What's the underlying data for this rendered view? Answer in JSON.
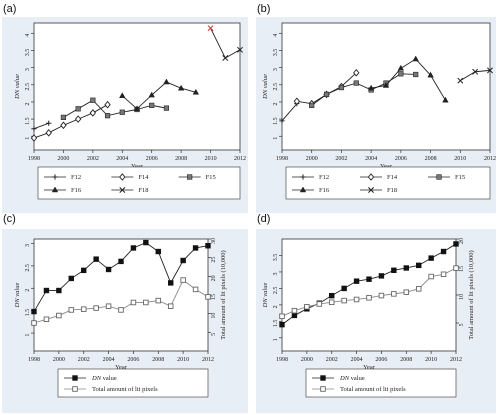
{
  "panels": [
    {
      "label": "(a)"
    },
    {
      "label": "(b)"
    },
    {
      "label": "(c)"
    },
    {
      "label": "(d)"
    }
  ],
  "colors": {
    "line": "#222222",
    "background": "#e8eef5",
    "plot": "#ffffff",
    "red": "#d32f2f",
    "gray": "#999999"
  },
  "chart_data": [
    {
      "type": "line",
      "panel": "(a)",
      "xlabel": "Year",
      "ylabel": "DN value",
      "xlim": [
        1998,
        2012
      ],
      "ylim": [
        0.6,
        4.3
      ],
      "xticks": [
        1998,
        2000,
        2002,
        2004,
        2006,
        2008,
        2010,
        2012
      ],
      "yticks": [
        1,
        1.5,
        2,
        2.5,
        3,
        3.5,
        4
      ],
      "legend": "bottom",
      "series": [
        {
          "name": "F12",
          "marker": "plus",
          "x": [
            1998,
            1999
          ],
          "values": [
            1.22,
            1.38
          ]
        },
        {
          "name": "F14",
          "marker": "diamond",
          "x": [
            1998,
            1999,
            2000,
            2001,
            2002,
            2003
          ],
          "values": [
            0.95,
            1.1,
            1.32,
            1.5,
            1.68,
            1.92
          ]
        },
        {
          "name": "F15",
          "marker": "square",
          "x": [
            2000,
            2001,
            2002,
            2003,
            2004,
            2005,
            2006,
            2007
          ],
          "values": [
            1.55,
            1.8,
            2.05,
            1.6,
            1.7,
            1.78,
            1.9,
            1.82
          ]
        },
        {
          "name": "F16",
          "marker": "triangle",
          "x": [
            2004,
            2005,
            2006,
            2007,
            2008,
            2009
          ],
          "values": [
            2.18,
            1.8,
            2.2,
            2.58,
            2.4,
            2.28
          ]
        },
        {
          "name": "F18",
          "marker": "x",
          "x": [
            2010,
            2011,
            2012
          ],
          "values": [
            4.15,
            3.28,
            3.52
          ],
          "red_x": [
            2010
          ]
        }
      ]
    },
    {
      "type": "line",
      "panel": "(b)",
      "xlabel": "Year",
      "ylabel": "DN value",
      "xlim": [
        1998,
        2012
      ],
      "ylim": [
        0.6,
        4.3
      ],
      "xticks": [
        1998,
        2000,
        2002,
        2004,
        2006,
        2008,
        2010,
        2012
      ],
      "yticks": [
        1,
        1.5,
        2,
        2.5,
        3,
        3.5,
        4
      ],
      "legend": "bottom",
      "series": [
        {
          "name": "F12",
          "marker": "plus",
          "x": [
            1998,
            1999
          ],
          "values": [
            1.45,
            1.95
          ]
        },
        {
          "name": "F14",
          "marker": "diamond",
          "x": [
            1999,
            2000,
            2001,
            2002,
            2003
          ],
          "values": [
            2.02,
            1.95,
            2.22,
            2.45,
            2.85
          ]
        },
        {
          "name": "F15",
          "marker": "square",
          "x": [
            2000,
            2001,
            2002,
            2003,
            2004,
            2005,
            2006,
            2007
          ],
          "values": [
            1.9,
            2.22,
            2.42,
            2.55,
            2.35,
            2.55,
            2.82,
            2.8
          ]
        },
        {
          "name": "F16",
          "marker": "triangle",
          "x": [
            2004,
            2005,
            2006,
            2007,
            2008,
            2009
          ],
          "values": [
            2.4,
            2.48,
            2.98,
            3.25,
            2.78,
            2.05
          ]
        },
        {
          "name": "F18",
          "marker": "x",
          "x": [
            2010,
            2011,
            2012
          ],
          "values": [
            2.62,
            2.88,
            2.92
          ]
        }
      ]
    },
    {
      "type": "line",
      "panel": "(c)",
      "xlabel": "Year",
      "ylabel": "DN value",
      "y2label": "Total amount of lit pixels (10,000)",
      "xlim": [
        1998,
        2012
      ],
      "ylim": [
        0.6,
        3.1
      ],
      "y2lim": [
        0,
        30
      ],
      "xticks": [
        1998,
        2000,
        2002,
        2004,
        2006,
        2008,
        2010,
        2012
      ],
      "yticks": [
        1,
        1.5,
        2,
        2.5,
        3
      ],
      "y2ticks": [
        5,
        10,
        15,
        20,
        25,
        30
      ],
      "legend": "bottom-left",
      "series": [
        {
          "name": "DN value",
          "axis": "left",
          "marker": "filled-square",
          "x": [
            1998,
            1999,
            2000,
            2001,
            2002,
            2003,
            2004,
            2005,
            2006,
            2007,
            2008,
            2009,
            2010,
            2011,
            2012
          ],
          "values": [
            1.48,
            1.95,
            1.95,
            2.22,
            2.4,
            2.65,
            2.42,
            2.6,
            2.9,
            3.02,
            2.82,
            2.12,
            2.62,
            2.9,
            2.95
          ]
        },
        {
          "name": "Total amount of lit pixels",
          "axis": "right",
          "marker": "open-square",
          "x": [
            1998,
            1999,
            2000,
            2001,
            2002,
            2003,
            2004,
            2005,
            2006,
            2007,
            2008,
            2009,
            2010,
            2011,
            2012
          ],
          "values": [
            7.5,
            8.5,
            9.5,
            11,
            11.2,
            11.5,
            12,
            11,
            13,
            13,
            13.5,
            12,
            19,
            16.5,
            14.5
          ]
        }
      ]
    },
    {
      "type": "line",
      "panel": "(d)",
      "xlabel": "Year",
      "ylabel": "DN value",
      "y2label": "Total amount of lit pixels (10,000)",
      "xlim": [
        1998,
        2012
      ],
      "ylim": [
        0.6,
        4.0
      ],
      "y2lim": [
        0,
        20
      ],
      "xticks": [
        1998,
        2000,
        2002,
        2004,
        2006,
        2008,
        2010,
        2012
      ],
      "yticks": [
        1,
        1.5,
        2,
        2.5,
        3,
        3.5
      ],
      "y2ticks": [
        5,
        10,
        15,
        20
      ],
      "legend": "bottom-left",
      "series": [
        {
          "name": "DN value",
          "axis": "left",
          "marker": "filled-square",
          "x": [
            1998,
            1999,
            2000,
            2001,
            2002,
            2003,
            2004,
            2005,
            2006,
            2007,
            2008,
            2009,
            2010,
            2011,
            2012
          ],
          "values": [
            1.4,
            1.68,
            1.88,
            2.05,
            2.28,
            2.5,
            2.72,
            2.78,
            2.88,
            3.05,
            3.12,
            3.2,
            3.42,
            3.62,
            3.85
          ]
        },
        {
          "name": "Total amount of lit pixels",
          "axis": "right",
          "marker": "open-square",
          "x": [
            1998,
            1999,
            2000,
            2001,
            2002,
            2003,
            2004,
            2005,
            2006,
            2007,
            2008,
            2009,
            2010,
            2011,
            2012
          ],
          "values": [
            6.2,
            7.2,
            7.9,
            8.4,
            8.7,
            9.0,
            9.2,
            9.5,
            9.9,
            10.2,
            10.5,
            11.1,
            13.3,
            13.7,
            14.8
          ]
        }
      ]
    }
  ]
}
